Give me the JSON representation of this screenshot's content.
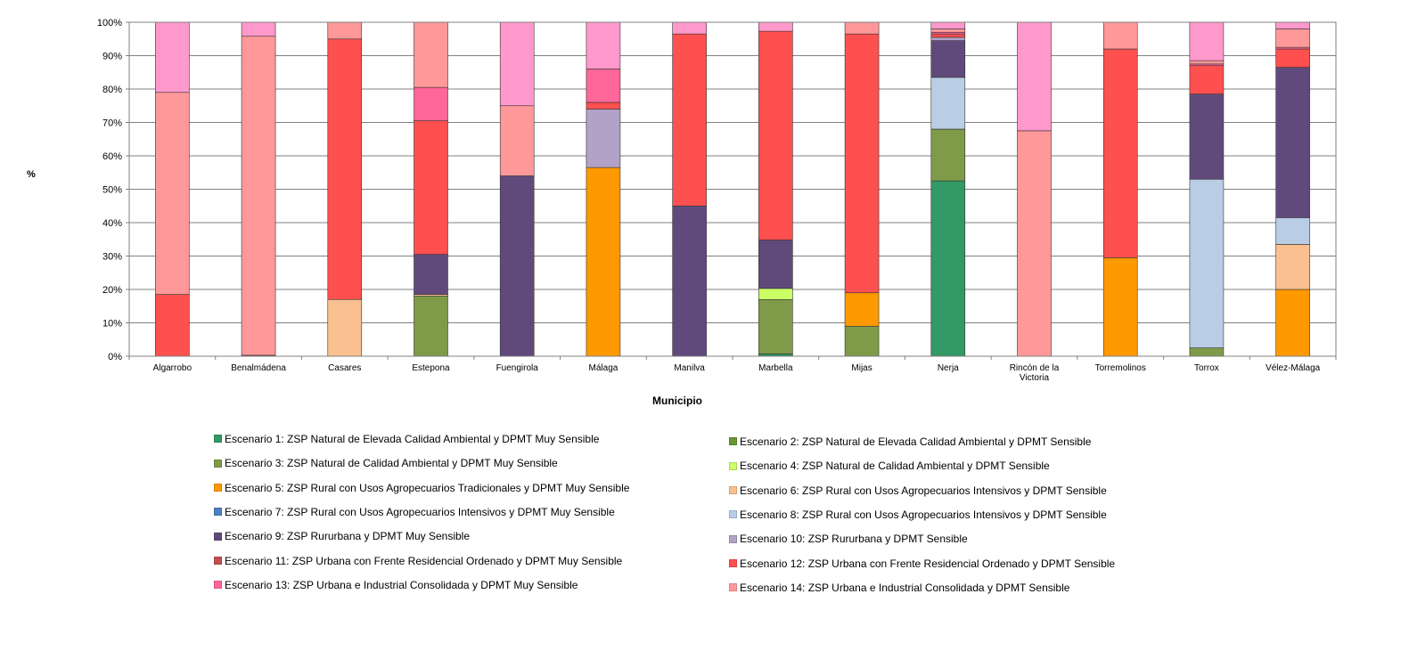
{
  "chart_data": {
    "type": "bar",
    "stacked": true,
    "title": "",
    "xlabel": "Municipio",
    "ylabel": "%",
    "ylim": [
      0,
      100
    ],
    "yticks": [
      "0%",
      "10%",
      "20%",
      "30%",
      "40%",
      "50%",
      "60%",
      "70%",
      "80%",
      "90%",
      "100%"
    ],
    "grid": true,
    "legend_position": "bottom",
    "categories": [
      "Algarrobo",
      "Benalmádena",
      "Casares",
      "Estepona",
      "Fuengirola",
      "Málaga",
      "Manilva",
      "Marbella",
      "Mijas",
      "Nerja",
      "Rincón de la Victoria",
      "Torremolinos",
      "Torrox",
      "Vélez-Málaga"
    ],
    "series": [
      {
        "name": "Escenario 1: ZSP Natural de Elevada Calidad Ambiental y DPMT Muy Sensible",
        "color": "#339966",
        "values": [
          0,
          0,
          0,
          0,
          0,
          0,
          0,
          0.7,
          0,
          52.5,
          0,
          0,
          0,
          0
        ]
      },
      {
        "name": "Escenario 2: ZSP Natural de Elevada Calidad Ambiental y DPMT Sensible",
        "color": "#669933",
        "values": [
          0,
          0,
          0,
          0,
          0,
          0,
          0,
          0,
          0,
          0,
          0,
          0,
          0,
          0
        ]
      },
      {
        "name": "Escenario 3: ZSP Natural de Calidad Ambiental y DPMT Muy Sensible",
        "color": "#7f9a48",
        "values": [
          0,
          0,
          0,
          18,
          0,
          0,
          0,
          16.3,
          9,
          15.5,
          0,
          0,
          2.5,
          0
        ]
      },
      {
        "name": "Escenario 4: ZSP Natural de Calidad Ambiental y DPMT Sensible",
        "color": "#ccff66",
        "values": [
          0,
          0,
          0,
          0,
          0,
          0,
          0,
          3.3,
          0,
          0,
          0,
          0,
          0,
          0
        ]
      },
      {
        "name": "Escenario 5: ZSP Rural con Usos Agropecuarios Tradicionales y DPMT Muy Sensible",
        "color": "#ff9900",
        "values": [
          0,
          0,
          0,
          0,
          0,
          56.5,
          0,
          0,
          10,
          0,
          0,
          29.5,
          0,
          20
        ]
      },
      {
        "name": "Escenario 6: ZSP Rural con Usos Agropecuarios Intensivos y DPMT Sensible",
        "color": "#fac090",
        "values": [
          0,
          0,
          17,
          0.5,
          0,
          0,
          0,
          0,
          0,
          0,
          0,
          0,
          0,
          13.5
        ]
      },
      {
        "name": "Escenario 7: ZSP Rural con Usos Agropecuarios Intensivos y DPMT Muy Sensible",
        "color": "#4f81bd",
        "values": [
          0,
          0,
          0,
          0,
          0,
          0,
          0,
          0,
          0,
          0,
          0,
          0,
          0,
          0
        ]
      },
      {
        "name": "Escenario 8: ZSP Rural con Usos Agropecuarios Intensivos y DPMT Sensible",
        "color": "#b9cde5",
        "values": [
          0,
          0,
          0,
          0,
          0,
          0,
          0,
          0,
          0,
          15.5,
          0,
          0,
          50.5,
          8
        ]
      },
      {
        "name": "Escenario 9: ZSP Rururbana y DPMT Muy Sensible",
        "color": "#604a7b",
        "values": [
          0,
          0,
          0,
          12,
          54,
          0,
          45,
          14.5,
          0,
          11,
          0,
          0,
          25.5,
          45
        ]
      },
      {
        "name": "Escenario 10: ZSP Rururbana y DPMT Sensible",
        "color": "#b3a2c7",
        "values": [
          0,
          0,
          0,
          0,
          0,
          17.5,
          0,
          0,
          0,
          1,
          0,
          0,
          0,
          0
        ]
      },
      {
        "name": "Escenario 11: ZSP Urbana con Frente Residencial Ordenado y DPMT Muy Sensible",
        "color": "#c0504d",
        "values": [
          0,
          0.3,
          0,
          0,
          0,
          0,
          0,
          0,
          0,
          0,
          0,
          0,
          0,
          0
        ]
      },
      {
        "name": "Escenario 12: ZSP Urbana con Frente Residencial Ordenado y DPMT Sensible",
        "color": "#ff5050",
        "values": [
          18.5,
          0,
          78,
          40,
          0,
          2,
          51.5,
          62.5,
          77.5,
          1,
          0,
          62.5,
          8.5,
          5.5
        ]
      },
      {
        "name": "Escenario 13: ZSP Urbana e Industrial Consolidada y DPMT Muy Sensible",
        "color": "#ff6699",
        "values": [
          0,
          0,
          0,
          10,
          0,
          10,
          0,
          0,
          0,
          0.5,
          0,
          0,
          0.5,
          0.5
        ]
      },
      {
        "name": "Escenario 14: ZSP Urbana e Industrial Consolidada y DPMT Sensible",
        "color": "#ff9999",
        "values": [
          60.5,
          95.5,
          5,
          19.5,
          21,
          0,
          0,
          0,
          3.5,
          1,
          67.5,
          8,
          1,
          5.5
        ]
      },
      {
        "name": "",
        "color": "#ff99cc",
        "values": [
          21,
          4.2,
          0,
          0,
          25,
          14,
          3.5,
          3,
          0,
          3,
          32.5,
          0,
          11.5,
          2
        ]
      }
    ]
  },
  "legend": [
    "Escenario 1: ZSP Natural de Elevada Calidad Ambiental y DPMT Muy Sensible",
    "Escenario 2: ZSP Natural de Elevada Calidad Ambiental y DPMT Sensible",
    "Escenario 3: ZSP Natural de Calidad Ambiental y DPMT Muy Sensible",
    "Escenario 4: ZSP Natural de Calidad Ambiental y DPMT Sensible",
    "Escenario 5: ZSP Rural con Usos Agropecuarios Tradicionales y DPMT Muy Sensible",
    "Escenario 6: ZSP Rural con Usos Agropecuarios Intensivos y DPMT Sensible",
    "Escenario 7: ZSP Rural con Usos Agropecuarios Intensivos y DPMT Muy Sensible",
    "Escenario 8: ZSP Rural con Usos Agropecuarios Intensivos y DPMT Sensible",
    "Escenario 9: ZSP Rururbana y DPMT Muy Sensible",
    "Escenario 10: ZSP Rururbana y DPMT Sensible",
    "Escenario 11: ZSP Urbana con Frente Residencial Ordenado y DPMT Muy Sensible",
    "Escenario 12: ZSP Urbana con Frente Residencial Ordenado y DPMT Sensible",
    "Escenario 13: ZSP Urbana e Industrial Consolidada y DPMT Muy Sensible",
    "Escenario 14: ZSP Urbana e Industrial Consolidada y DPMT Sensible"
  ],
  "legend_colors": [
    "#339966",
    "#669933",
    "#7f9a48",
    "#ccff66",
    "#ff9900",
    "#fac090",
    "#4f81bd",
    "#b9cde5",
    "#604a7b",
    "#b3a2c7",
    "#c0504d",
    "#ff5050",
    "#ff6699",
    "#ff9999"
  ]
}
